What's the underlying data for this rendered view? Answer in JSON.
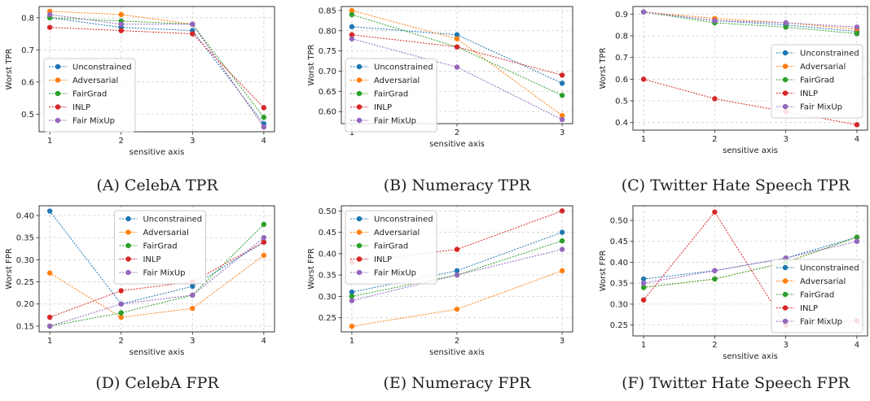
{
  "legend_colors": [
    "#1f77b4",
    "#ff7f0e",
    "#2ca02c",
    "#d62728",
    "#9467bd"
  ],
  "chart_data": [
    {
      "type": "line",
      "caption": "(A) CelebA TPR",
      "xlabel": "sensitive axis",
      "ylabel": "Worst TPR",
      "x": [
        1,
        2,
        3,
        4
      ],
      "xlim": [
        0.85,
        4.15
      ],
      "ylim": [
        0.445,
        0.835
      ],
      "yticks": [
        0.5,
        0.6,
        0.7,
        0.8
      ],
      "ytick_labels": [
        "0.5",
        "0.6",
        "0.7",
        "0.8"
      ],
      "grid": true,
      "legend_position": "center-left",
      "series": [
        {
          "name": "Unconstrained",
          "color": "#1f77b4",
          "values": [
            0.8,
            0.77,
            0.76,
            0.47
          ]
        },
        {
          "name": "Adversarial",
          "color": "#ff7f0e",
          "values": [
            0.82,
            0.81,
            0.78,
            0.46
          ]
        },
        {
          "name": "FairGrad",
          "color": "#2ca02c",
          "values": [
            0.8,
            0.79,
            0.78,
            0.49
          ]
        },
        {
          "name": "INLP",
          "color": "#d62728",
          "values": [
            0.77,
            0.76,
            0.75,
            0.52
          ]
        },
        {
          "name": "Fair MixUp",
          "color": "#9467bd",
          "values": [
            0.81,
            0.78,
            0.78,
            0.46
          ]
        }
      ]
    },
    {
      "type": "line",
      "caption": "(B) Numeracy TPR",
      "xlabel": "sensitive axis",
      "ylabel": "Worst TPR",
      "x": [
        1,
        2,
        3
      ],
      "xlim": [
        0.9,
        3.1
      ],
      "ylim": [
        0.57,
        0.86
      ],
      "yticks": [
        0.6,
        0.65,
        0.7,
        0.75,
        0.8,
        0.85
      ],
      "ytick_labels": [
        "0.60",
        "0.65",
        "0.70",
        "0.75",
        "0.80",
        "0.85"
      ],
      "grid": true,
      "legend_position": "center-left",
      "series": [
        {
          "name": "Unconstrained",
          "color": "#1f77b4",
          "values": [
            0.81,
            0.79,
            0.67
          ]
        },
        {
          "name": "Adversarial",
          "color": "#ff7f0e",
          "values": [
            0.85,
            0.78,
            0.59
          ]
        },
        {
          "name": "FairGrad",
          "color": "#2ca02c",
          "values": [
            0.84,
            0.76,
            0.64
          ]
        },
        {
          "name": "INLP",
          "color": "#d62728",
          "values": [
            0.79,
            0.76,
            0.69
          ]
        },
        {
          "name": "Fair MixUp",
          "color": "#9467bd",
          "values": [
            0.78,
            0.71,
            0.58
          ]
        }
      ]
    },
    {
      "type": "line",
      "caption": "(C) Twitter Hate Speech TPR",
      "xlabel": "sensitive axis",
      "ylabel": "Worst TPR",
      "x": [
        1,
        2,
        3,
        4
      ],
      "xlim": [
        0.85,
        4.15
      ],
      "ylim": [
        0.365,
        0.935
      ],
      "yticks": [
        0.4,
        0.5,
        0.6,
        0.7,
        0.8,
        0.9
      ],
      "ytick_labels": [
        "0.4",
        "0.5",
        "0.6",
        "0.7",
        "0.8",
        "0.9"
      ],
      "grid": true,
      "legend_position": "center-right",
      "series": [
        {
          "name": "Unconstrained",
          "color": "#1f77b4",
          "values": [
            0.91,
            0.87,
            0.85,
            0.82
          ]
        },
        {
          "name": "Adversarial",
          "color": "#ff7f0e",
          "values": [
            0.91,
            0.88,
            0.86,
            0.83
          ]
        },
        {
          "name": "FairGrad",
          "color": "#2ca02c",
          "values": [
            0.91,
            0.86,
            0.84,
            0.81
          ]
        },
        {
          "name": "INLP",
          "color": "#d62728",
          "values": [
            0.6,
            0.51,
            0.45,
            0.39
          ]
        },
        {
          "name": "Fair MixUp",
          "color": "#9467bd",
          "values": [
            0.91,
            0.87,
            0.86,
            0.84
          ]
        }
      ]
    },
    {
      "type": "line",
      "caption": "(D) CelebA FPR",
      "xlabel": "sensitive axis",
      "ylabel": "Worst FPR",
      "x": [
        1,
        2,
        3,
        4
      ],
      "xlim": [
        0.85,
        4.15
      ],
      "ylim": [
        0.137,
        0.422
      ],
      "yticks": [
        0.15,
        0.2,
        0.25,
        0.3,
        0.35,
        0.4
      ],
      "ytick_labels": [
        "0.15",
        "0.20",
        "0.25",
        "0.30",
        "0.35",
        "0.40"
      ],
      "grid": true,
      "legend_position": "top-center",
      "series": [
        {
          "name": "Unconstrained",
          "color": "#1f77b4",
          "values": [
            0.41,
            0.2,
            0.24,
            0.34
          ]
        },
        {
          "name": "Adversarial",
          "color": "#ff7f0e",
          "values": [
            0.27,
            0.17,
            0.19,
            0.31
          ]
        },
        {
          "name": "FairGrad",
          "color": "#2ca02c",
          "values": [
            0.15,
            0.18,
            0.22,
            0.38
          ]
        },
        {
          "name": "INLP",
          "color": "#d62728",
          "values": [
            0.17,
            0.23,
            0.25,
            0.34
          ]
        },
        {
          "name": "Fair MixUp",
          "color": "#9467bd",
          "values": [
            0.15,
            0.2,
            0.22,
            0.35
          ]
        }
      ]
    },
    {
      "type": "line",
      "caption": "(E) Numeracy FPR",
      "xlabel": "sensitive axis",
      "ylabel": "Worst FPR",
      "x": [
        1,
        2,
        3
      ],
      "xlim": [
        0.9,
        3.1
      ],
      "ylim": [
        0.217,
        0.512
      ],
      "yticks": [
        0.25,
        0.3,
        0.35,
        0.4,
        0.45,
        0.5
      ],
      "ytick_labels": [
        "0.25",
        "0.30",
        "0.35",
        "0.40",
        "0.45",
        "0.50"
      ],
      "grid": true,
      "legend_position": "top-left",
      "series": [
        {
          "name": "Unconstrained",
          "color": "#1f77b4",
          "values": [
            0.31,
            0.36,
            0.45
          ]
        },
        {
          "name": "Adversarial",
          "color": "#ff7f0e",
          "values": [
            0.23,
            0.27,
            0.36
          ]
        },
        {
          "name": "FairGrad",
          "color": "#2ca02c",
          "values": [
            0.3,
            0.35,
            0.43
          ]
        },
        {
          "name": "INLP",
          "color": "#d62728",
          "values": [
            0.38,
            0.41,
            0.5
          ]
        },
        {
          "name": "Fair MixUp",
          "color": "#9467bd",
          "values": [
            0.29,
            0.35,
            0.41
          ]
        }
      ]
    },
    {
      "type": "line",
      "caption": "(F) Twitter Hate Speech FPR",
      "xlabel": "sensitive axis",
      "ylabel": "Worst FPR",
      "x": [
        1,
        2,
        3,
        4
      ],
      "xlim": [
        0.85,
        4.15
      ],
      "ylim": [
        0.224,
        0.535
      ],
      "yticks": [
        0.25,
        0.3,
        0.35,
        0.4,
        0.45,
        0.5
      ],
      "ytick_labels": [
        "0.25",
        "0.30",
        "0.35",
        "0.40",
        "0.45",
        "0.50"
      ],
      "grid": true,
      "legend_position": "lower-right",
      "series": [
        {
          "name": "Unconstrained",
          "color": "#1f77b4",
          "values": [
            0.36,
            0.38,
            0.41,
            0.46
          ]
        },
        {
          "name": "Adversarial",
          "color": "#ff7f0e",
          "values": [
            0.34,
            0.36,
            0.4,
            0.46
          ]
        },
        {
          "name": "FairGrad",
          "color": "#2ca02c",
          "values": [
            0.34,
            0.36,
            0.4,
            0.46
          ]
        },
        {
          "name": "INLP",
          "color": "#d62728",
          "values": [
            0.31,
            0.52,
            0.25,
            0.26
          ]
        },
        {
          "name": "Fair MixUp",
          "color": "#9467bd",
          "values": [
            0.35,
            0.38,
            0.41,
            0.45
          ]
        }
      ]
    }
  ]
}
